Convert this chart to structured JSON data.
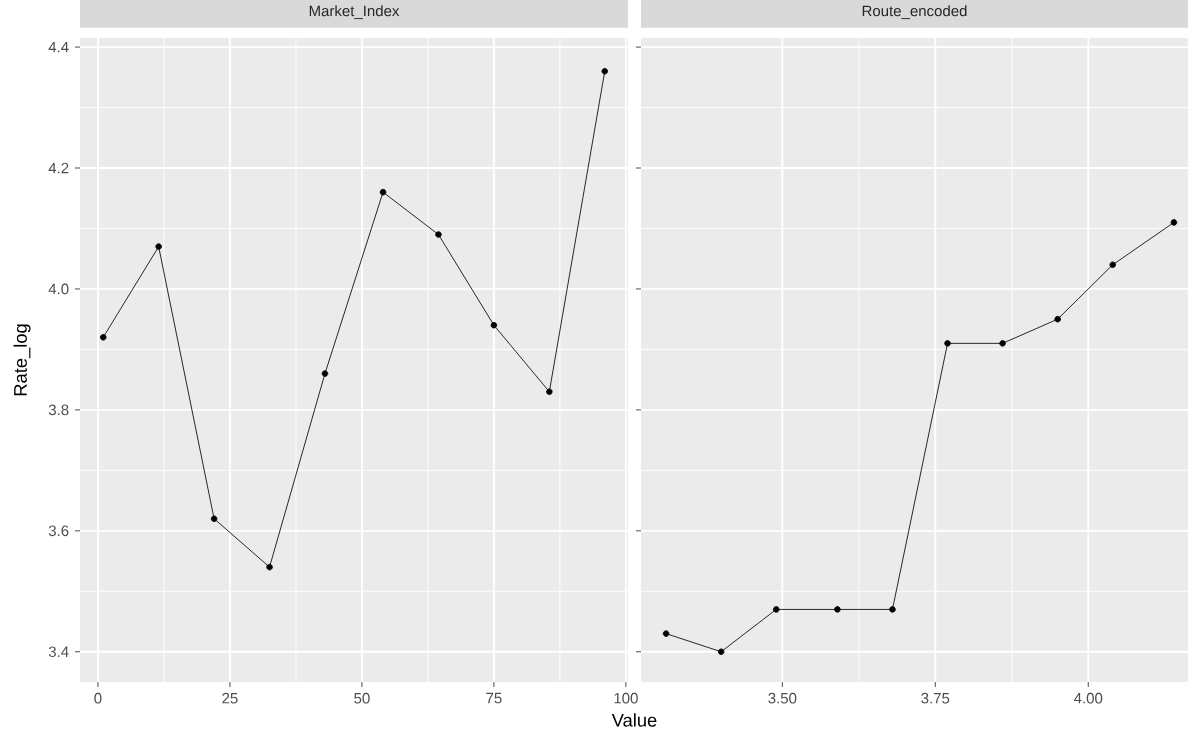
{
  "chart_data": [
    {
      "type": "line",
      "title": "Market_Index",
      "xlabel": "Value",
      "ylabel": "Rate_log",
      "marker": "circle",
      "grid": true,
      "line_style": "solid",
      "x": [
        1,
        11.5,
        22,
        32.5,
        43,
        54,
        64.5,
        75,
        85.5,
        96
      ],
      "series": [
        {
          "color": "#000000",
          "values": [
            3.92,
            4.07,
            3.62,
            3.54,
            3.86,
            4.16,
            4.09,
            3.94,
            3.83,
            4.36
          ]
        }
      ],
      "xlim": [
        -3.4,
        100.4
      ],
      "xticks": [
        0,
        25,
        50,
        75,
        100
      ],
      "ylim": [
        3.35,
        4.415
      ],
      "yticks": [
        3.4,
        3.6,
        3.8,
        {
          "value": 4,
          "label": "4.0"
        },
        4.2,
        4.4
      ]
    },
    {
      "type": "line",
      "title": "Route_encoded",
      "marker": "circle",
      "grid": true,
      "line_style": "solid",
      "tick_labels": "x",
      "x": [
        3.31,
        3.4,
        3.49,
        3.59,
        3.68,
        3.77,
        3.86,
        3.95,
        4.04,
        4.14
      ],
      "series": [
        {
          "color": "#000000",
          "values": [
            3.43,
            3.4,
            3.47,
            3.47,
            3.47,
            3.91,
            3.91,
            3.95,
            4.04,
            4.11
          ]
        }
      ],
      "xlim": [
        3.269,
        4.163
      ],
      "xticks": [
        {
          "value": 3.5,
          "label": "3.50"
        },
        {
          "value": 3.75,
          "label": "3.75"
        },
        {
          "value": 4.0,
          "label": "4.00"
        }
      ],
      "ylim": [
        3.35,
        4.415
      ],
      "yticks": [
        3.4,
        3.6,
        3.8,
        4,
        4.2,
        4.4
      ]
    }
  ]
}
